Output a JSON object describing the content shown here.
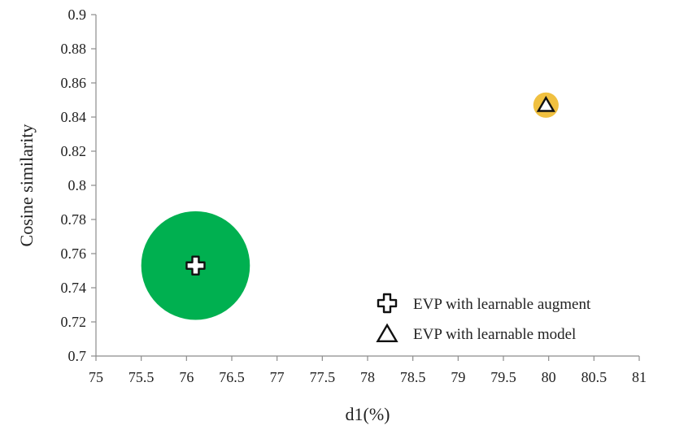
{
  "chart_data": {
    "type": "scatter",
    "xlabel": "d1(%)",
    "ylabel": "Cosine similarity",
    "xlim": [
      75,
      81
    ],
    "ylim": [
      0.7,
      0.9
    ],
    "x_ticks": [
      "75",
      "75.5",
      "76",
      "76.5",
      "77",
      "77.5",
      "78",
      "78.5",
      "79",
      "79.5",
      "80",
      "80.5",
      "81"
    ],
    "y_ticks": [
      "0.7",
      "0.72",
      "0.74",
      "0.76",
      "0.78",
      "0.8",
      "0.82",
      "0.84",
      "0.86",
      "0.88",
      "0.9"
    ],
    "grid": false,
    "legend_position": "bottom-right",
    "series": [
      {
        "name": "EVP with learnable augment",
        "marker": "cross-icon",
        "x": 76.1,
        "y": 0.753,
        "bubble_radius_x": 0.6,
        "bubble_color": "#00b050"
      },
      {
        "name": "EVP with learnable model",
        "marker": "triangle-icon",
        "x": 79.97,
        "y": 0.847,
        "bubble_radius_x": 0.14,
        "bubble_color": "#f0c040"
      }
    ]
  }
}
